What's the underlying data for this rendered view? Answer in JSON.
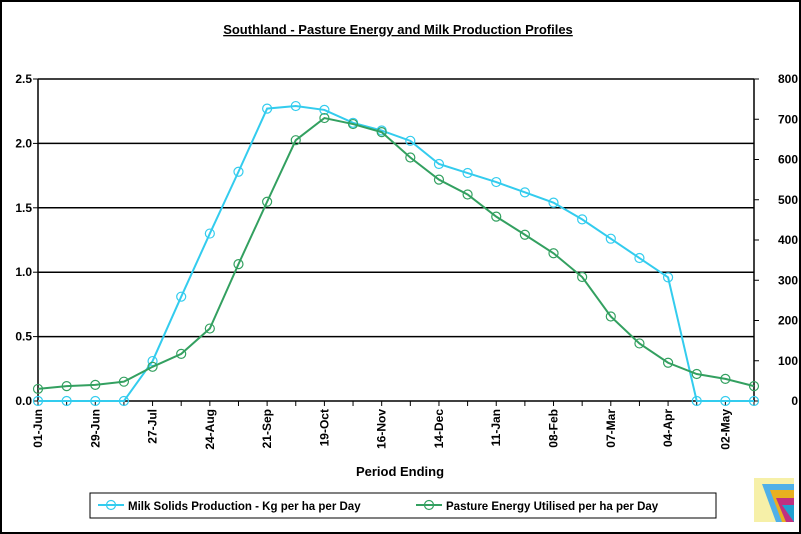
{
  "chart_data": {
    "type": "line",
    "title": "Southland - Pasture Energy and Milk Production Profiles",
    "xlabel": "Period Ending",
    "ylabel": "",
    "y2label": "",
    "categories": [
      "01-Jun",
      "15-Jun",
      "29-Jun",
      "13-Jul",
      "27-Jul",
      "10-Aug",
      "24-Aug",
      "07-Sep",
      "21-Sep",
      "05-Oct",
      "19-Oct",
      "02-Nov",
      "16-Nov",
      "30-Nov",
      "14-Dec",
      "28-Dec",
      "11-Jan",
      "25-Jan",
      "08-Feb",
      "22-Feb",
      "07-Mar",
      "21-Mar",
      "04-Apr",
      "18-Apr",
      "02-May",
      "16-May"
    ],
    "x_tick_labels": [
      "01-Jun",
      "29-Jun",
      "27-Jul",
      "24-Aug",
      "21-Sep",
      "19-Oct",
      "16-Nov",
      "14-Dec",
      "11-Jan",
      "08-Feb",
      "07-Mar",
      "04-Apr",
      "02-May"
    ],
    "ylim": [
      0,
      2.5
    ],
    "y_ticks": [
      "0.0",
      "0.5",
      "1.0",
      "1.5",
      "2.0",
      "2.5"
    ],
    "y2lim": [
      0,
      800
    ],
    "y2_ticks": [
      "0",
      "100",
      "200",
      "300",
      "400",
      "500",
      "600",
      "700",
      "800"
    ],
    "grid": "horizontal",
    "legend_position": "bottom",
    "series": [
      {
        "name": "Milk Solids Production - Kg per ha per Day",
        "axis": "left",
        "color": "#33ccee",
        "values": [
          0.0,
          0.0,
          0.0,
          0.0,
          0.31,
          0.81,
          1.3,
          1.78,
          2.27,
          2.29,
          2.26,
          2.16,
          2.1,
          2.02,
          1.84,
          1.77,
          1.7,
          1.62,
          1.54,
          1.41,
          1.26,
          1.11,
          0.96,
          0.0,
          0.0,
          0.0
        ]
      },
      {
        "name": "Pasture Energy Utilised per ha per Day",
        "axis": "right",
        "color": "#33a060",
        "values": [
          30,
          37,
          40,
          48,
          85,
          117,
          180,
          340,
          495,
          648,
          703,
          688,
          668,
          605,
          550,
          513,
          458,
          413,
          367,
          308,
          210,
          143,
          95,
          67,
          55,
          37
        ]
      }
    ]
  }
}
